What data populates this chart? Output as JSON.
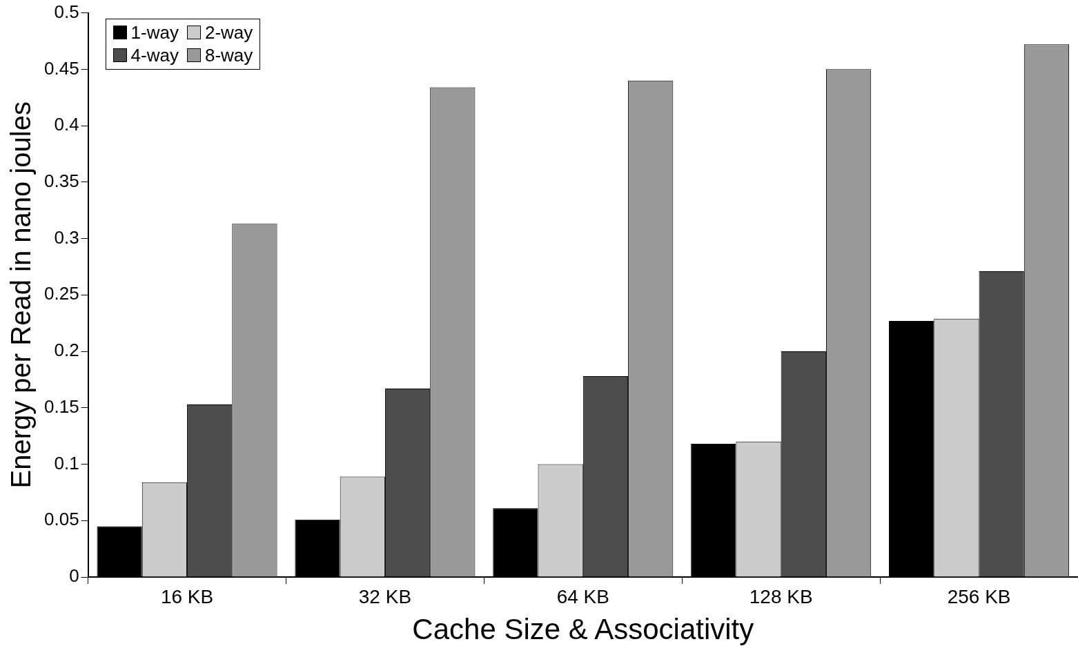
{
  "chart_data": {
    "type": "bar",
    "xlabel": "Cache Size & Associativity",
    "ylabel": "Energy per Read in nano joules",
    "categories": [
      "16 KB",
      "32 KB",
      "64 KB",
      "128 KB",
      "256 KB"
    ],
    "series": [
      {
        "name": "1-way",
        "color": "#000000",
        "values": [
          0.045,
          0.051,
          0.061,
          0.118,
          0.227
        ]
      },
      {
        "name": "2-way",
        "color": "#cccccc",
        "values": [
          0.084,
          0.089,
          0.1,
          0.12,
          0.229
        ]
      },
      {
        "name": "4-way",
        "color": "#4d4d4d",
        "values": [
          0.153,
          0.167,
          0.178,
          0.2,
          0.271
        ]
      },
      {
        "name": "8-way",
        "color": "#999999",
        "values": [
          0.313,
          0.434,
          0.44,
          0.45,
          0.472
        ]
      }
    ],
    "ylim": [
      0,
      0.5
    ],
    "yticks": [
      0,
      0.05,
      0.1,
      0.15,
      0.2,
      0.25,
      0.3,
      0.35,
      0.4,
      0.45,
      0.5
    ],
    "grid": false,
    "legend": "top left"
  }
}
